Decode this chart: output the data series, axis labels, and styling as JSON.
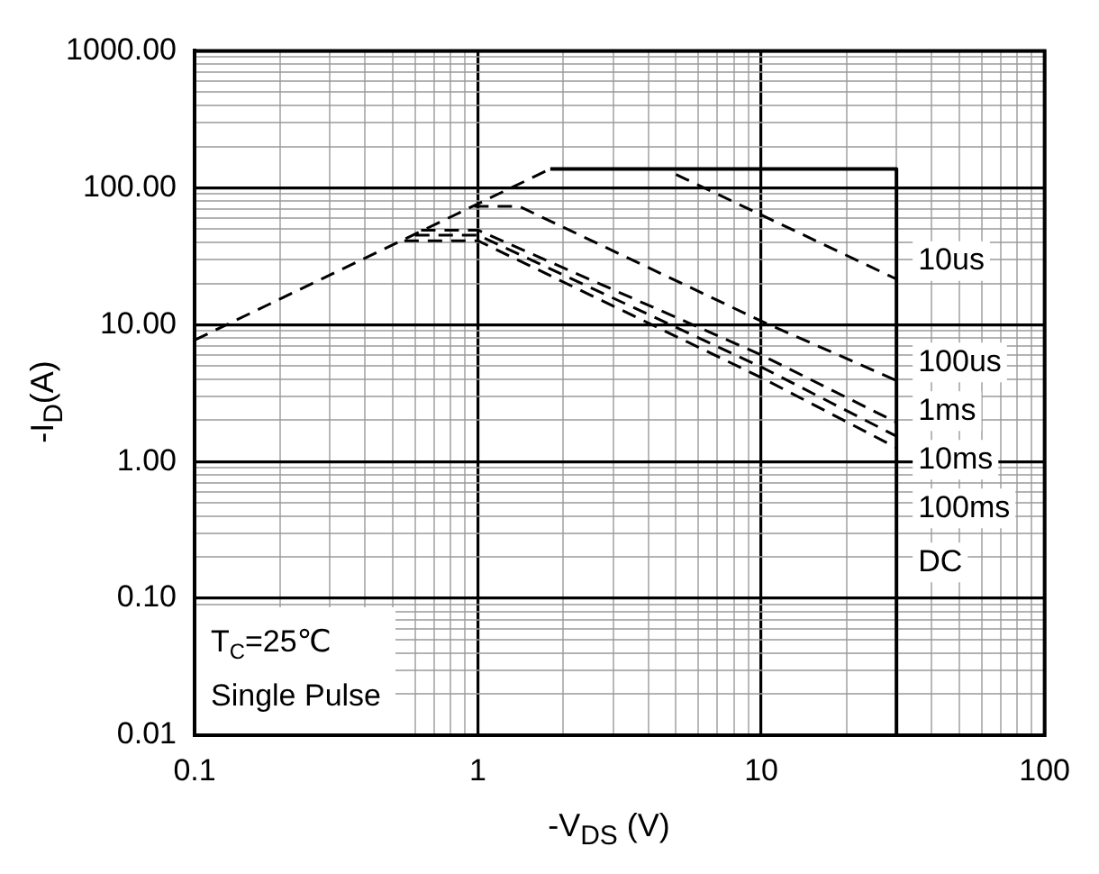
{
  "chart_data": {
    "type": "line",
    "xlabel": "-V$_{DS}$ (V)",
    "ylabel": "-I$_{D}$(A)",
    "log": "xy",
    "grid": true,
    "legend": false,
    "marker": "none",
    "xlim": [
      0.1,
      100
    ],
    "ylim": [
      0.01,
      1000
    ],
    "xticks": [
      0.1,
      {
        "value": 0.2,
        "label": null
      },
      {
        "value": 0.3,
        "label": null
      },
      {
        "value": 0.4,
        "label": null
      },
      {
        "value": 0.5,
        "label": null
      },
      {
        "value": 0.6,
        "label": null
      },
      {
        "value": 0.7,
        "label": null
      },
      {
        "value": 0.8,
        "label": null
      },
      {
        "value": 0.9,
        "label": null
      },
      1,
      {
        "value": 2,
        "label": null
      },
      {
        "value": 3,
        "label": null
      },
      {
        "value": 4,
        "label": null
      },
      {
        "value": 5,
        "label": null
      },
      {
        "value": 6,
        "label": null
      },
      {
        "value": 7,
        "label": null
      },
      {
        "value": 8,
        "label": null
      },
      {
        "value": 9,
        "label": null
      },
      10,
      {
        "value": 20,
        "label": null
      },
      {
        "value": 30,
        "label": null
      },
      {
        "value": 40,
        "label": null
      },
      {
        "value": 50,
        "label": null
      },
      {
        "value": 60,
        "label": null
      },
      {
        "value": 70,
        "label": null
      },
      {
        "value": 80,
        "label": null
      },
      {
        "value": 90,
        "label": null
      },
      100
    ],
    "yticks": [
      0.01,
      {
        "value": 0.02,
        "label": null
      },
      {
        "value": 0.03,
        "label": null
      },
      {
        "value": 0.04,
        "label": null
      },
      {
        "value": 0.05,
        "label": null
      },
      {
        "value": 0.06,
        "label": null
      },
      {
        "value": 0.07,
        "label": null
      },
      {
        "value": 0.08,
        "label": null
      },
      {
        "value": 0.09,
        "label": null
      },
      {
        "value": 0.1,
        "label": "0.10"
      },
      {
        "value": 0.2,
        "label": null
      },
      {
        "value": 0.3,
        "label": null
      },
      {
        "value": 0.4,
        "label": null
      },
      {
        "value": 0.5,
        "label": null
      },
      {
        "value": 0.6,
        "label": null
      },
      {
        "value": 0.7,
        "label": null
      },
      {
        "value": 0.8,
        "label": null
      },
      {
        "value": 0.9,
        "label": null
      },
      {
        "value": 1,
        "label": "1.00"
      },
      {
        "value": 2,
        "label": null
      },
      {
        "value": 3,
        "label": null
      },
      {
        "value": 4,
        "label": null
      },
      {
        "value": 5,
        "label": null
      },
      {
        "value": 6,
        "label": null
      },
      {
        "value": 7,
        "label": null
      },
      {
        "value": 8,
        "label": null
      },
      {
        "value": 9,
        "label": null
      },
      {
        "value": 10,
        "label": "10.00"
      },
      {
        "value": 20,
        "label": null
      },
      {
        "value": 30,
        "label": null
      },
      {
        "value": 40,
        "label": null
      },
      {
        "value": 50,
        "label": null
      },
      {
        "value": 60,
        "label": null
      },
      {
        "value": 70,
        "label": null
      },
      {
        "value": 80,
        "label": null
      },
      {
        "value": 90,
        "label": null
      },
      {
        "value": 100,
        "label": "100.00"
      },
      {
        "value": 200,
        "label": null
      },
      {
        "value": 300,
        "label": null
      },
      {
        "value": 400,
        "label": null
      },
      {
        "value": 500,
        "label": null
      },
      {
        "value": 600,
        "label": null
      },
      {
        "value": 700,
        "label": null
      },
      {
        "value": 800,
        "label": null
      },
      {
        "value": 900,
        "label": null
      },
      {
        "value": 1000,
        "label": "1000.00"
      }
    ],
    "series": [
      {
        "color": "#000000",
        "line_style": "dashed",
        "x": [
          0.1,
          1.8
        ],
        "values": [
          7.7,
          137
        ]
      },
      {
        "color": "#000000",
        "line_style": "solid",
        "x": [
          1.8,
          30,
          30
        ],
        "values": [
          137,
          137,
          0.01
        ]
      },
      {
        "name": "10us",
        "color": "#000000",
        "line_style": "dashed",
        "x": [
          5,
          30
        ],
        "values": [
          125,
          21.5
        ]
      },
      {
        "name": "100us",
        "color": "#000000",
        "line_style": "dashed",
        "x": [
          0.97,
          1.4,
          10,
          30
        ],
        "values": [
          73,
          73,
          10.6,
          3.9
        ]
      },
      {
        "name": "1ms",
        "color": "#000000",
        "line_style": "dashed",
        "x": [
          0.63,
          1,
          10,
          30
        ],
        "values": [
          49,
          49,
          6,
          1.93
        ]
      },
      {
        "name": "10ms",
        "color": "#000000",
        "line_style": "dashed",
        "x": [
          0.6,
          1,
          10,
          30
        ],
        "values": [
          45,
          45,
          4.9,
          1.53
        ]
      },
      {
        "name": "100ms",
        "color": "#000000",
        "line_style": "dashed",
        "x": [
          0.55,
          1,
          10,
          30
        ],
        "values": [
          41,
          41,
          4.1,
          1.26
        ]
      }
    ],
    "annotations": [
      "DC",
      "T$_{C}$=25℃",
      "Single Pulse"
    ]
  }
}
